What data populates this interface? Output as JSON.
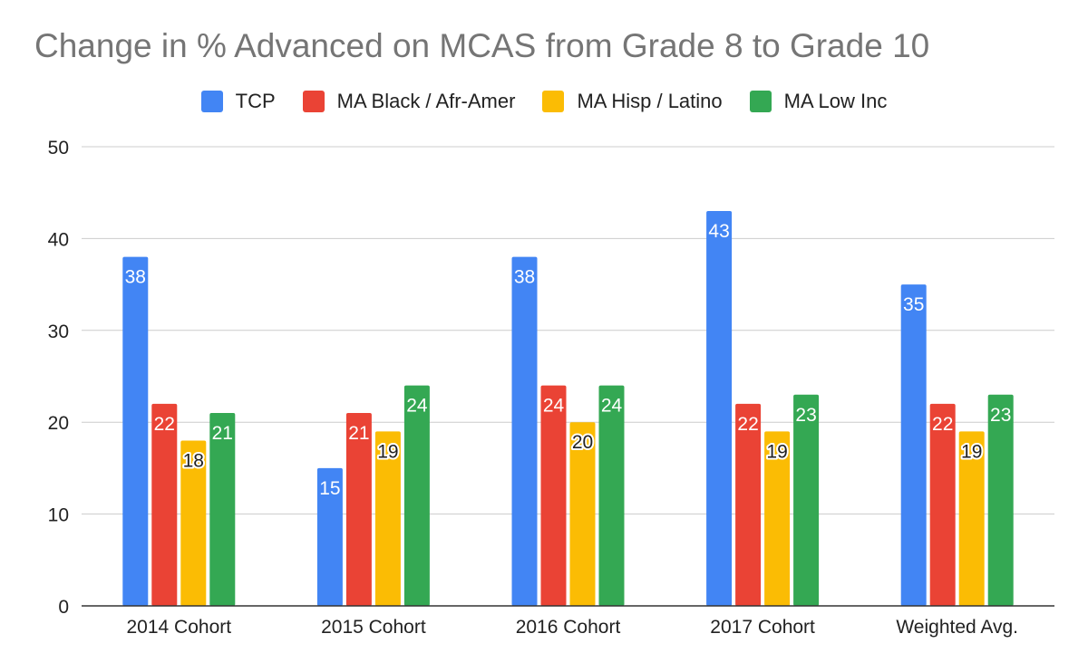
{
  "chart_data": {
    "type": "bar",
    "title": "Change in % Advanced on MCAS from Grade 8 to Grade 10",
    "categories": [
      "2014 Cohort",
      "2015 Cohort",
      "2016 Cohort",
      "2017 Cohort",
      "Weighted Avg."
    ],
    "series": [
      {
        "name": "TCP",
        "color": "#4285f4",
        "values": [
          38,
          15,
          38,
          43,
          35
        ]
      },
      {
        "name": "MA Black / Afr-Amer",
        "color": "#ea4335",
        "values": [
          22,
          21,
          24,
          22,
          22
        ]
      },
      {
        "name": "MA Hisp / Latino",
        "color": "#fbbc04",
        "values": [
          18,
          19,
          20,
          19,
          19
        ]
      },
      {
        "name": "MA Low Inc",
        "color": "#34a853",
        "values": [
          21,
          24,
          24,
          23,
          23
        ]
      }
    ],
    "ylim": [
      0,
      50
    ],
    "yticks": [
      0,
      10,
      20,
      30,
      40,
      50
    ],
    "grid": true,
    "legend": "top"
  }
}
